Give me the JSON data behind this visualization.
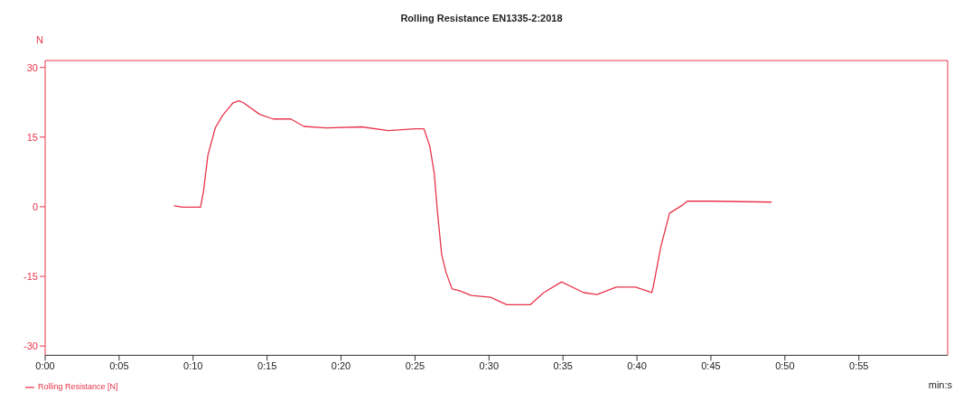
{
  "chart_data": {
    "type": "line",
    "title": "Rolling Resistance EN1335-2:2018",
    "xlabel": "min:s",
    "ylabel": "N",
    "xlim": [
      0,
      61
    ],
    "ylim": [
      -32,
      31.5
    ],
    "xticks": [
      {
        "value": 0,
        "label": "0:00"
      },
      {
        "value": 5,
        "label": "0:05"
      },
      {
        "value": 10,
        "label": "0:10"
      },
      {
        "value": 15,
        "label": "0:15"
      },
      {
        "value": 20,
        "label": "0:20"
      },
      {
        "value": 25,
        "label": "0:25"
      },
      {
        "value": 30,
        "label": "0:30"
      },
      {
        "value": 35,
        "label": "0:35"
      },
      {
        "value": 40,
        "label": "0:40"
      },
      {
        "value": 45,
        "label": "0:45"
      },
      {
        "value": 50,
        "label": "0:50"
      },
      {
        "value": 55,
        "label": "0:55"
      }
    ],
    "yticks": [
      -30,
      -15,
      0,
      15,
      30
    ],
    "grid": false,
    "legend": "bottom left",
    "marker": "none",
    "line_style": "solid",
    "x": [
      8.7,
      9.3,
      10.5,
      10.7,
      11.0,
      11.5,
      12.0,
      12.7,
      13.1,
      13.4,
      14.5,
      15.4,
      16.6,
      17.5,
      19.0,
      21.4,
      23.2,
      25.0,
      25.6,
      26.0,
      26.3,
      26.5,
      26.8,
      27.1,
      27.5,
      28.0,
      28.8,
      30.1,
      31.2,
      32.8,
      33.7,
      34.9,
      36.4,
      37.3,
      38.6,
      39.9,
      41.0,
      41.1,
      41.6,
      42.2,
      43.1,
      43.4,
      44.9,
      49.1
    ],
    "series": [
      {
        "name": "Rolling Resistance [N]",
        "color": "#e8344a",
        "values": [
          0.2,
          -0.1,
          -0.1,
          3.3,
          11.1,
          17,
          19.7,
          22.4,
          22.8,
          22.4,
          19.9,
          18.9,
          18.9,
          17.3,
          17.0,
          17.2,
          16.4,
          16.8,
          16.8,
          13,
          7.2,
          -0.6,
          -10.3,
          -14.2,
          -17.7,
          -18.1,
          -19.1,
          -19.5,
          -21.1,
          -21.1,
          -18.5,
          -16.2,
          -18.5,
          -18.9,
          -17.3,
          -17.3,
          -18.5,
          -17.3,
          -8.8,
          -1.4,
          0.4,
          1.2,
          1.2,
          1.0
        ]
      }
    ]
  }
}
